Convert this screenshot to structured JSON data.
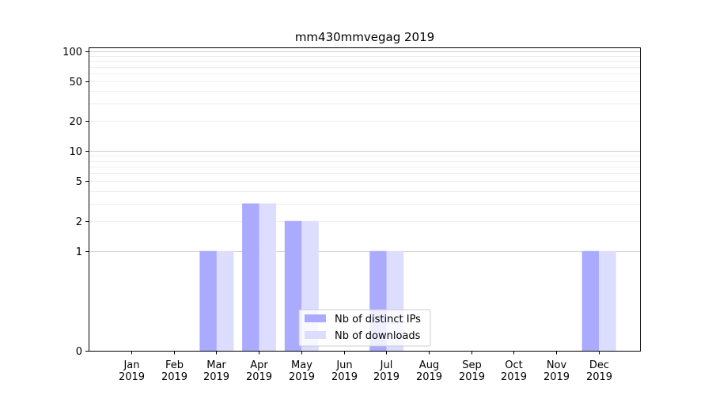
{
  "chart_data": {
    "type": "bar",
    "title": "mm430mmvegag 2019",
    "xlabel": "",
    "ylabel": "",
    "yscale": "symlog",
    "ylim": [
      0,
      110
    ],
    "yticks": [
      0,
      1,
      2,
      5,
      10,
      20,
      50,
      100
    ],
    "ytick_labels": [
      "0",
      "1",
      "2",
      "5",
      "10",
      "20",
      "50",
      "100"
    ],
    "categories": [
      "Jan\n2019",
      "Feb\n2019",
      "Mar\n2019",
      "Apr\n2019",
      "May\n2019",
      "Jun\n2019",
      "Jul\n2019",
      "Aug\n2019",
      "Sep\n2019",
      "Oct\n2019",
      "Nov\n2019",
      "Dec\n2019"
    ],
    "series": [
      {
        "name": "Nb of distinct IPs",
        "color": "#aaaaff",
        "values": [
          0,
          0,
          1,
          3,
          2,
          0,
          1,
          0,
          0,
          0,
          0,
          1
        ]
      },
      {
        "name": "Nb of downloads",
        "color": "#ddddff",
        "values": [
          0,
          0,
          1,
          3,
          2,
          0,
          1,
          0,
          0,
          0,
          0,
          1
        ]
      }
    ],
    "grid": true,
    "legend_position": "lower-center"
  }
}
